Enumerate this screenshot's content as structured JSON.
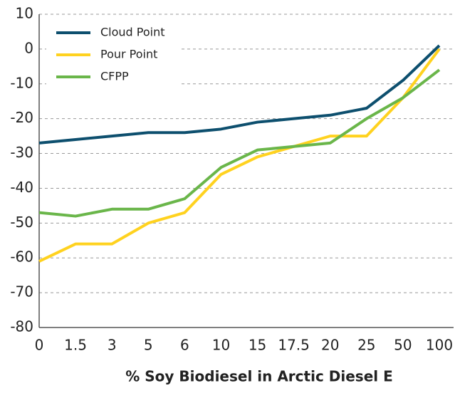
{
  "chart_data": {
    "type": "line",
    "x_label": "% Soy Biodiesel in Arctic Diesel E",
    "categories": [
      "0",
      "1.5",
      "3",
      "5",
      "6",
      "10",
      "15",
      "17.5",
      "20",
      "25",
      "50",
      "100"
    ],
    "series": [
      {
        "name": "Cloud Point",
        "color": "#0d4f6e",
        "values": [
          -27,
          -26,
          -25,
          -24,
          -24,
          -23,
          -21,
          -20,
          -19,
          -17,
          -9,
          1
        ]
      },
      {
        "name": "Pour Point",
        "color": "#ffd21f",
        "values": [
          -61,
          -56,
          -56,
          -50,
          -47,
          -36,
          -31,
          -28,
          -25,
          -25,
          -14,
          0
        ]
      },
      {
        "name": "CFPP",
        "color": "#6ab64a",
        "values": [
          -47,
          -48,
          -46,
          -46,
          -43,
          -34,
          -29,
          -28,
          -27,
          -20,
          -14,
          -6
        ]
      }
    ],
    "ylim": [
      -80,
      10
    ],
    "yticks": [
      -80,
      -70,
      -60,
      -50,
      -40,
      -30,
      -20,
      -10,
      0,
      10
    ],
    "grid": true,
    "legend": "top-left"
  }
}
